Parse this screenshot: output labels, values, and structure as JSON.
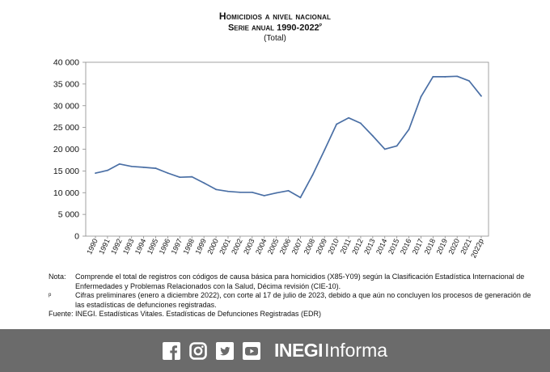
{
  "chart_data": {
    "type": "line",
    "title": "Homicidios a nivel nacional",
    "subtitle": "Serie anual 1990-2022",
    "subtitle_sup": "p",
    "series_label": "(Total)",
    "categories": [
      "1990",
      "1991",
      "1992",
      "1993",
      "1994",
      "1995",
      "1996",
      "1997",
      "1998",
      "1999",
      "2000",
      "2001",
      "2002",
      "2003",
      "2004",
      "2005",
      "2006",
      "2007",
      "2008",
      "2009",
      "2010",
      "2011",
      "2012",
      "2013",
      "2014",
      "2015",
      "2016",
      "2017",
      "2018",
      "2019",
      "2020",
      "2021",
      "2022p"
    ],
    "values": [
      14493,
      15125,
      16594,
      16040,
      15839,
      15612,
      14505,
      13552,
      13656,
      12249,
      10737,
      10285,
      10088,
      10087,
      9329,
      9926,
      10454,
      8867,
      14006,
      19803,
      25757,
      27213,
      25967,
      23063,
      20010,
      20762,
      24559,
      32079,
      36685,
      36661,
      36773,
      35700,
      32223
    ],
    "ylim": [
      0,
      40000
    ],
    "y_ticks": [
      "0",
      "5 000",
      "10 000",
      "15 000",
      "20 000",
      "25 000",
      "30 000",
      "35 000",
      "40 000"
    ],
    "grid": false,
    "line_color": "#4a6fa5"
  },
  "notes": [
    {
      "key": "Nota:",
      "sup": "",
      "text": "Comprende el total de registros con códigos de causa básica para homicidios (X85-Y09) según la Clasificación Estadística Internacional de Enfermedades y Problemas Relacionados con la Salud, Décima revisión (CIE-10)."
    },
    {
      "key": "",
      "sup": "p",
      "text": "Cifras preliminares (enero a diciembre 2022), con corte al 17 de julio de 2023, debido a que aún no concluyen los procesos de generación de las estadísticas de defunciones registradas."
    },
    {
      "key": "Fuente:",
      "sup": "",
      "text": "INEGI. Estadísticas Vitales. Estadísticas de Defunciones Registradas (EDR)"
    }
  ],
  "footer": {
    "icons": [
      "facebook-icon",
      "instagram-icon",
      "twitter-icon",
      "youtube-icon"
    ],
    "brand_bold": "INEGI",
    "brand_light": "Informa",
    "bg_color": "#6b6b6b"
  }
}
